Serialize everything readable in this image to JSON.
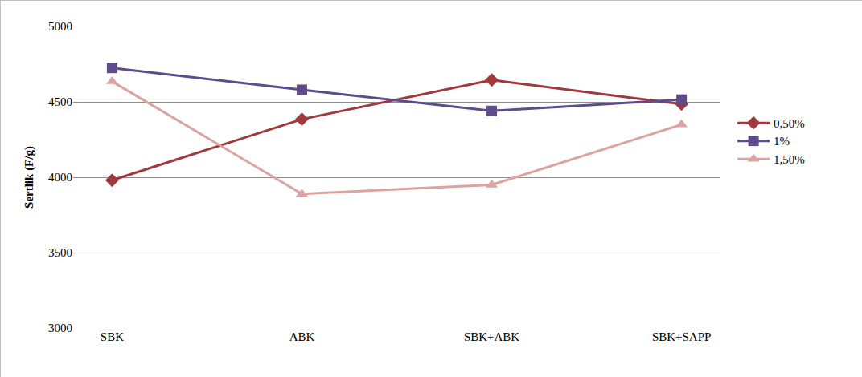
{
  "chart_data": {
    "type": "line",
    "y_label": "Sertlik (F/g)",
    "categories": [
      "SBK",
      "ABK",
      "SBK+ABK",
      "SBK+SAPP"
    ],
    "series": [
      {
        "name": "0,50%",
        "color": "#a0393c",
        "marker": "diamond",
        "values": [
          3980,
          4385,
          4645,
          4485
        ]
      },
      {
        "name": "1%",
        "color": "#5f4b8b",
        "marker": "square",
        "values": [
          4725,
          4580,
          4440,
          4515
        ]
      },
      {
        "name": "1,50%",
        "color": "#dba3a1",
        "marker": "triangle-up",
        "values": [
          4635,
          3890,
          3950,
          4350
        ]
      }
    ],
    "ylim": [
      3000,
      5000
    ],
    "yticks": [
      3000,
      3500,
      4000,
      4500,
      5000
    ],
    "grid": true,
    "legend": "right"
  }
}
